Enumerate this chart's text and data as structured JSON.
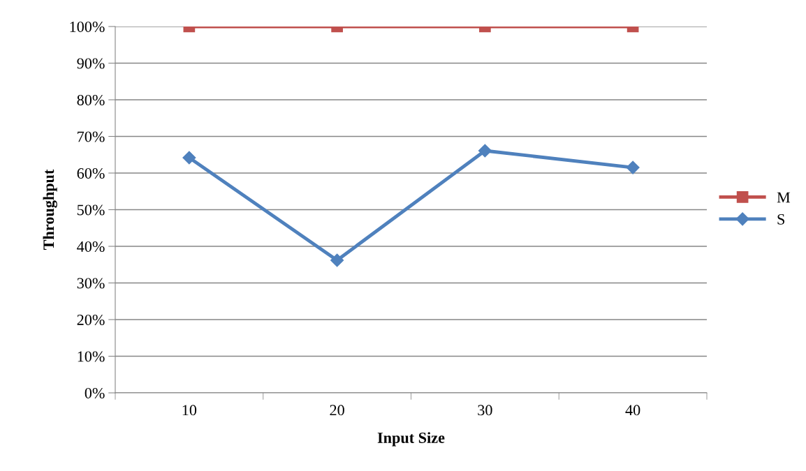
{
  "chart_data": {
    "type": "line",
    "xlabel": "Input Size",
    "ylabel": "Throughput",
    "categories": [
      "10",
      "20",
      "30",
      "40"
    ],
    "series": [
      {
        "name": "M",
        "color": "#c0504d",
        "marker": "square",
        "values": [
          100,
          100,
          100,
          100
        ]
      },
      {
        "name": "S",
        "color": "#4f81bd",
        "marker": "diamond",
        "values": [
          64.2,
          36.2,
          66.1,
          61.5
        ]
      }
    ],
    "ylim": [
      0,
      100
    ],
    "yticks": [
      {
        "value": 0,
        "label": "0%"
      },
      {
        "value": 10,
        "label": "10%"
      },
      {
        "value": 20,
        "label": "20%"
      },
      {
        "value": 30,
        "label": "30%"
      },
      {
        "value": 40,
        "label": "40%"
      },
      {
        "value": 50,
        "label": "50%"
      },
      {
        "value": 60,
        "label": "60%"
      },
      {
        "value": 70,
        "label": "70%"
      },
      {
        "value": 80,
        "label": "80%"
      },
      {
        "value": 90,
        "label": "90%"
      },
      {
        "value": 100,
        "label": "100%"
      }
    ],
    "grid": "y",
    "legend": "right"
  }
}
